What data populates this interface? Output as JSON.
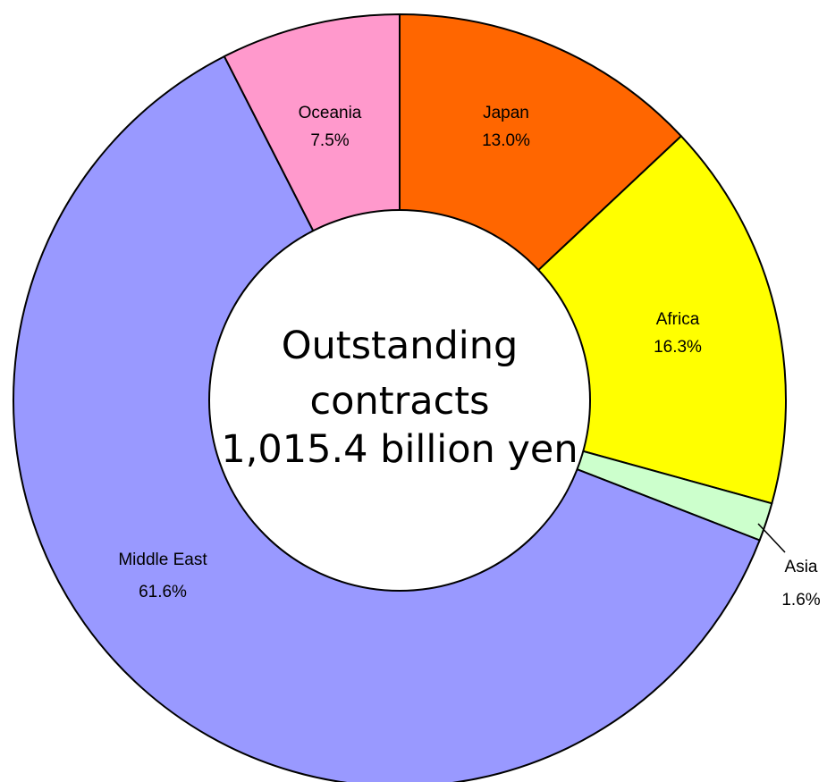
{
  "chart_data": {
    "type": "pie",
    "donut": true,
    "title": "",
    "center_label": [
      "Outstanding",
      "contracts",
      "1,015.4 billion yen"
    ],
    "slices": [
      {
        "name": "Japan",
        "value": 13.0,
        "label": "13.0%",
        "color": "#FF6600"
      },
      {
        "name": "Africa",
        "value": 16.3,
        "label": "16.3%",
        "color": "#FFFF00"
      },
      {
        "name": "Asia",
        "value": 1.6,
        "label": "1.6%",
        "color": "#CCFFCC"
      },
      {
        "name": "Middle East",
        "value": 61.6,
        "label": "61.6%",
        "color": "#9999FF"
      },
      {
        "name": "Oceania",
        "value": 7.5,
        "label": "7.5%",
        "color": "#FF99CC"
      }
    ],
    "start_angle_deg": 0,
    "direction": "clockwise",
    "legend": "none"
  }
}
